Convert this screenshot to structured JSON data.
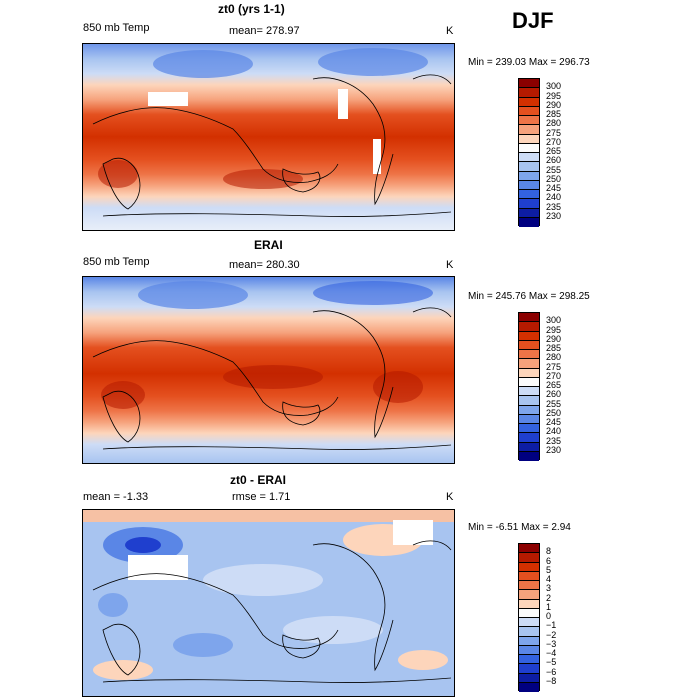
{
  "season": "DJF",
  "panels": [
    {
      "title": "zt0 (yrs 1-1)",
      "left_label": "850 mb Temp",
      "center_label": "mean= 278.97",
      "unit": "K",
      "minmax": "Min = 239.03 Max = 296.73",
      "levels": [
        "300",
        "295",
        "290",
        "285",
        "280",
        "275",
        "270",
        "265",
        "260",
        "255",
        "250",
        "245",
        "240",
        "235",
        "230"
      ],
      "colors": [
        "#8b0000",
        "#b51a00",
        "#d33000",
        "#e4501f",
        "#ee7447",
        "#f6a27c",
        "#fdd5bb",
        "#fbfbfb",
        "#cddcf6",
        "#a8c4f0",
        "#7ea5ec",
        "#5a86e6",
        "#3362e0",
        "#1f3fce",
        "#0d1da3",
        "#000080"
      ],
      "kind": "temp"
    },
    {
      "title": "ERAI",
      "left_label": "850 mb Temp",
      "center_label": "mean= 280.30",
      "unit": "K",
      "minmax": "Min = 245.76 Max = 298.25",
      "levels": [
        "300",
        "295",
        "290",
        "285",
        "280",
        "275",
        "270",
        "265",
        "260",
        "255",
        "250",
        "245",
        "240",
        "235",
        "230"
      ],
      "colors": [
        "#8b0000",
        "#b51a00",
        "#d33000",
        "#e4501f",
        "#ee7447",
        "#f6a27c",
        "#fdd5bb",
        "#fbfbfb",
        "#cddcf6",
        "#a8c4f0",
        "#7ea5ec",
        "#5a86e6",
        "#3362e0",
        "#1f3fce",
        "#0d1da3",
        "#000080"
      ],
      "kind": "temp"
    },
    {
      "title": "zt0 - ERAI",
      "left_label": "mean =   -1.33",
      "center_label": "rmse =    1.71",
      "unit": "K",
      "minmax": "Min =  -6.51 Max =    2.94",
      "levels": [
        "8",
        "6",
        "5",
        "4",
        "3",
        "2",
        "1",
        "0",
        "−1",
        "−2",
        "−3",
        "−4",
        "−5",
        "−6",
        "−8"
      ],
      "colors": [
        "#8b0000",
        "#b51a00",
        "#d33000",
        "#e4501f",
        "#ee7447",
        "#f6a27c",
        "#fdd5bb",
        "#fbfbfb",
        "#cddcf6",
        "#a8c4f0",
        "#7ea5ec",
        "#5a86e6",
        "#3362e0",
        "#1f3fce",
        "#0d1da3",
        "#000080"
      ],
      "kind": "diff"
    }
  ]
}
